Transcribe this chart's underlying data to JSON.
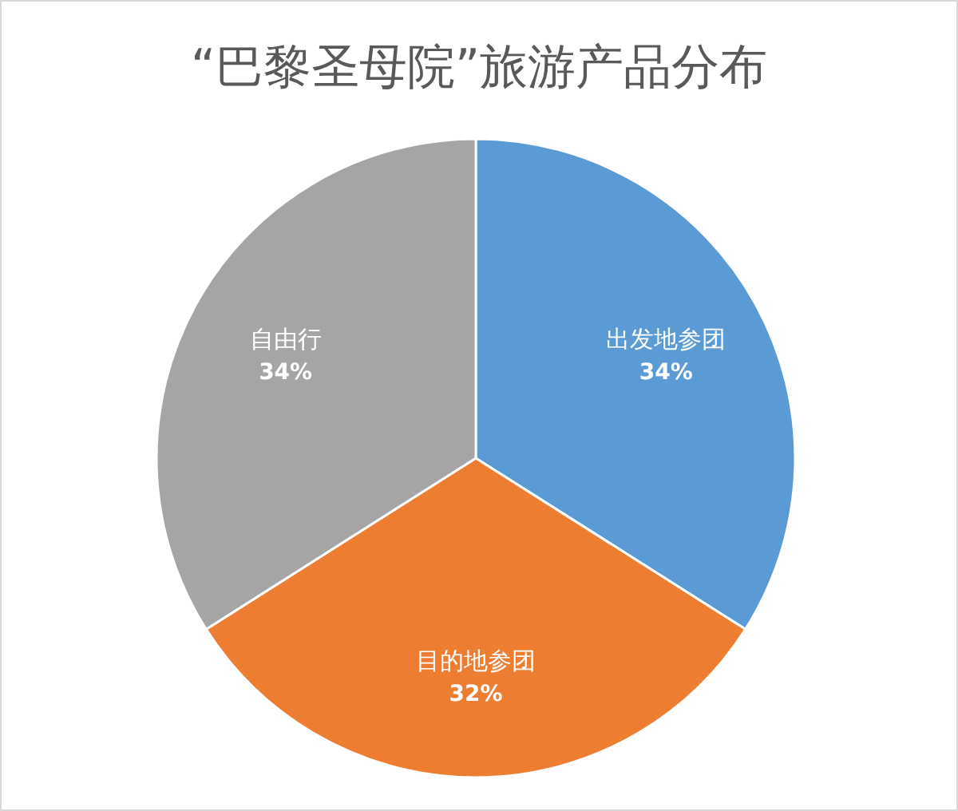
{
  "chart_data": {
    "type": "pie",
    "title": "“巴黎圣母院”旅游产品分布",
    "categories": [
      "出发地参团",
      "目的地参团",
      "自由行"
    ],
    "values": [
      34,
      32,
      34
    ],
    "value_labels": [
      "34%",
      "32%",
      "34%"
    ],
    "colors": [
      "#5b9bd5",
      "#ed7d31",
      "#a5a5a5"
    ]
  }
}
